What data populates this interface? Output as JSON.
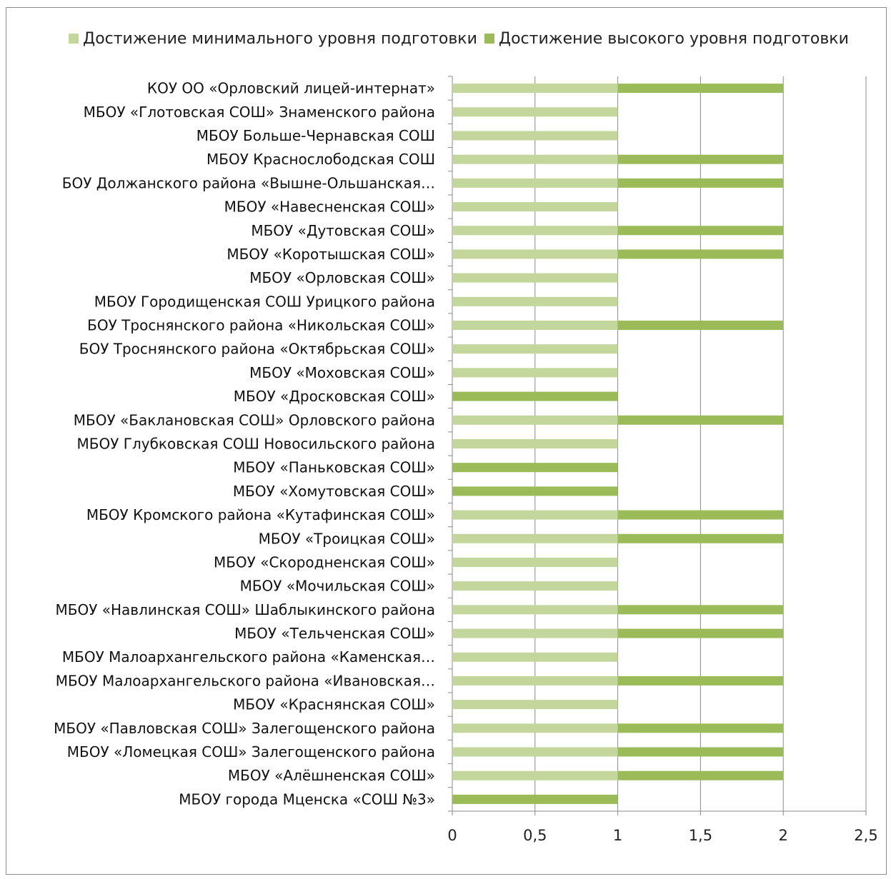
{
  "chart_data": {
    "type": "bar",
    "orientation": "horizontal",
    "stacked": true,
    "legend_position": "top",
    "grid": true,
    "xlim": [
      0,
      2.5
    ],
    "x_ticks": [
      "0",
      "0,5",
      "1",
      "1,5",
      "2",
      "2,5"
    ],
    "categories": [
      "КОУ ОО «Орловский лицей-интернат»",
      "МБОУ «Глотовская СОШ» Знаменского района",
      "МБОУ Больше-Чернавская СОШ",
      "МБОУ Краснослободская СОШ",
      "БОУ Должанского района «Вышне-Ольшанская…",
      "МБОУ «Навесненская СОШ»",
      "МБОУ «Дутовская СОШ»",
      "МБОУ «Коротышская СОШ»",
      "МБОУ «Орловская СОШ»",
      "МБОУ Городищенская СОШ Урицкого района",
      "БОУ Троснянского района «Никольская СОШ»",
      "БОУ Троснянского района «Октябрьская СОШ»",
      "МБОУ «Моховская СОШ»",
      "МБОУ «Дросковская СОШ»",
      "МБОУ «Баклановская СОШ» Орловского района",
      "МБОУ Глубковская СОШ Новосильского района",
      "МБОУ «Паньковская СОШ»",
      "МБОУ «Хомутовская СОШ»",
      "МБОУ Кромского района «Кутафинская СОШ»",
      "МБОУ «Троицкая СОШ»",
      "МБОУ «Скородненская СОШ»",
      "МБОУ «Мочильская СОШ»",
      "МБОУ  «Навлинская СОШ» Шаблыкинского района",
      "МБОУ «Тельченская СОШ»",
      "МБОУ Малоархангельского района «Каменская…",
      "МБОУ  Малоархангельского района «Ивановская…",
      "МБОУ «Краснянская СОШ»",
      "МБОУ «Павловская СОШ» Залегощенского района",
      "МБОУ «Ломецкая СОШ» Залегощенского района",
      "МБОУ «Алёшненская СОШ»",
      "МБОУ города Мценска «СОШ №3»"
    ],
    "series": [
      {
        "name": "Достижение минимального уровня подготовки",
        "color": "#c3d69b",
        "values": [
          1,
          1,
          1,
          1,
          1,
          1,
          1,
          1,
          1,
          1,
          1,
          1,
          1,
          0,
          1,
          1,
          0,
          0,
          1,
          1,
          1,
          1,
          1,
          1,
          1,
          1,
          1,
          1,
          1,
          1,
          0
        ]
      },
      {
        "name": "Достижение высокого уровня подготовки",
        "color": "#9bbb59",
        "values": [
          1,
          0,
          0,
          1,
          1,
          0,
          1,
          1,
          0,
          0,
          1,
          0,
          0,
          1,
          1,
          0,
          1,
          1,
          1,
          1,
          0,
          0,
          1,
          1,
          0,
          1,
          0,
          1,
          1,
          1,
          1
        ]
      }
    ]
  }
}
